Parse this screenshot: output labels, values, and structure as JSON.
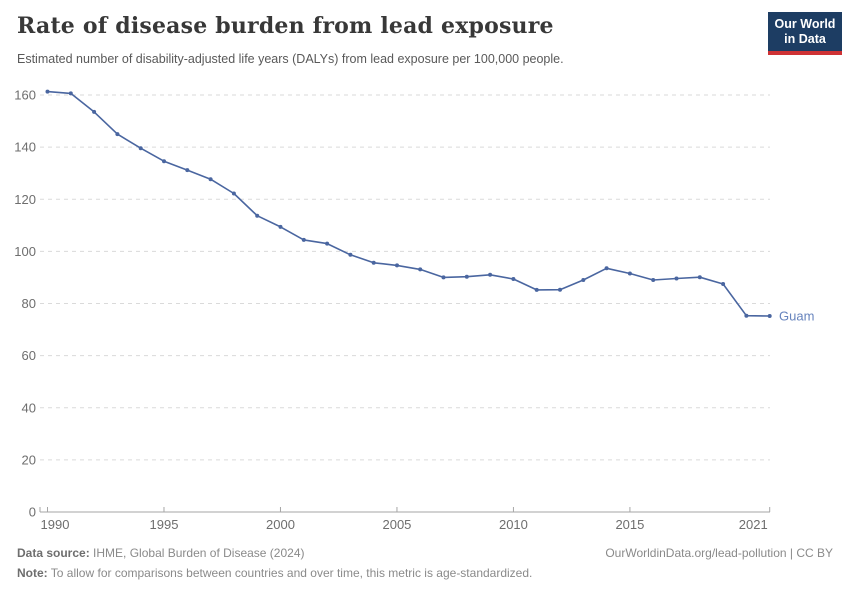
{
  "header": {
    "title": "Rate of disease burden from lead exposure",
    "subtitle": "Estimated number of disability-adjusted life years (DALYs) from lead exposure per 100,000 people.",
    "logo_line1": "Our World",
    "logo_line2": "in Data"
  },
  "chart_data": {
    "type": "line",
    "title": "Rate of disease burden from lead exposure",
    "subtitle": "Estimated number of disability-adjusted life years (DALYs) from lead exposure per 100,000 people.",
    "x": [
      1990,
      1991,
      1992,
      1993,
      1994,
      1995,
      1996,
      1997,
      1998,
      1999,
      2000,
      2001,
      2002,
      2003,
      2004,
      2005,
      2006,
      2007,
      2008,
      2009,
      2010,
      2011,
      2012,
      2013,
      2014,
      2015,
      2016,
      2017,
      2018,
      2019,
      2020,
      2021
    ],
    "series": [
      {
        "name": "Guam",
        "color": "#4a66a0",
        "label_color": "#6784bd",
        "values": [
          161.3,
          160.6,
          153.5,
          145.0,
          139.6,
          134.6,
          131.2,
          127.7,
          122.2,
          113.7,
          109.4,
          104.4,
          103.0,
          98.7,
          95.6,
          94.6,
          93.1,
          90.0,
          90.3,
          91.0,
          89.4,
          85.2,
          85.3,
          89.0,
          93.5,
          91.5,
          89.0,
          89.6,
          90.1,
          87.5,
          75.3,
          75.2
        ]
      }
    ],
    "x_ticks": [
      1990,
      1995,
      2000,
      2005,
      2010,
      2015,
      2021
    ],
    "y_ticks": [
      0,
      20,
      40,
      60,
      80,
      100,
      120,
      140,
      160
    ],
    "xlim": [
      1990,
      2021
    ],
    "ylim": [
      0,
      160
    ],
    "grid": "horizontal-dashed",
    "legend": "end-of-line-label",
    "colors": {
      "gridline": "#dadada",
      "axis": "#a6a6a6",
      "tick_label": "#6e6e6e"
    }
  },
  "footer": {
    "source_label": "Data source:",
    "source_text": "IHME, Global Burden of Disease (2024)",
    "link_text": "OurWorldinData.org/lead-pollution | CC BY",
    "note_label": "Note:",
    "note_text": "To allow for comparisons between countries and over time, this metric is age-standardized."
  }
}
